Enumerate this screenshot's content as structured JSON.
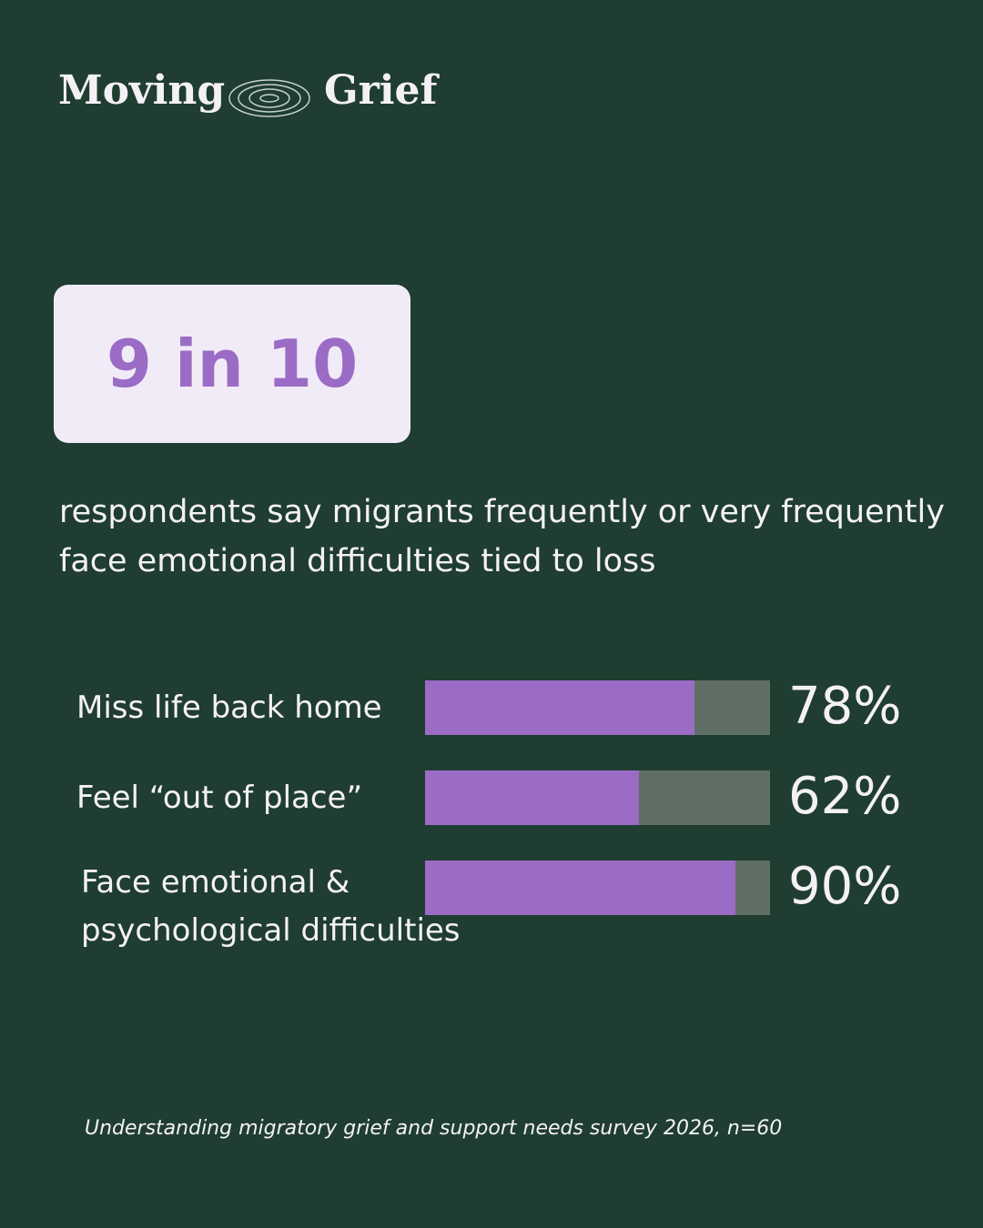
{
  "brand": {
    "left": "Moving",
    "right": "Grief"
  },
  "headline": "9 in 10",
  "subtitle": "respondents say migrants frequently or very frequently face emotional difficulties tied to loss",
  "source": "Understanding migratory grief and support needs survey 2026, n=60",
  "chart_data": {
    "type": "bar",
    "orientation": "horizontal",
    "categories": [
      "Miss life back home",
      "Feel “out of place”",
      "Face emotional & psychological difficulties"
    ],
    "values": [
      78,
      62,
      90
    ],
    "value_labels": [
      "78%",
      "62%",
      "90%"
    ],
    "xlim": [
      0,
      100
    ],
    "color": "#9b6cc6",
    "track_color": "#5f6f66"
  }
}
